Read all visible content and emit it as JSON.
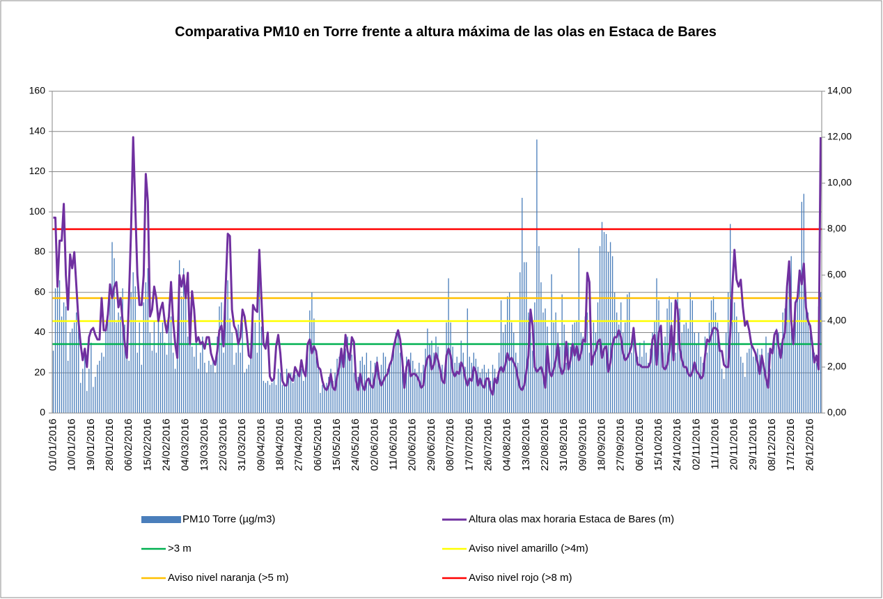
{
  "chart_data": {
    "type": "bar_line",
    "title": "Comparativa PM10 en Torre frente a altura máxima de las olas en Estaca de Bares",
    "categories": [
      "01/01/2016",
      null,
      null,
      null,
      null,
      null,
      null,
      null,
      null,
      "10/01/2016",
      null,
      null,
      null,
      null,
      null,
      null,
      null,
      null,
      "19/01/2016",
      null,
      null,
      null,
      null,
      null,
      null,
      null,
      null,
      "28/01/2016",
      null,
      null,
      null,
      null,
      null,
      null,
      null,
      null,
      "06/02/2016",
      null,
      null,
      null,
      null,
      null,
      null,
      null,
      null,
      "15/02/2016",
      null,
      null,
      null,
      null,
      null,
      null,
      null,
      null,
      "24/02/2016",
      null,
      null,
      null,
      null,
      null,
      null,
      null,
      null,
      "04/03/2016",
      null,
      null,
      null,
      null,
      null,
      null,
      null,
      null,
      "13/03/2016",
      null,
      null,
      null,
      null,
      null,
      null,
      null,
      null,
      "22/03/2016",
      null,
      null,
      null,
      null,
      null,
      null,
      null,
      null,
      "31/03/2016",
      null,
      null,
      null,
      null,
      null,
      null,
      null,
      null,
      "09/04/2016",
      null,
      null,
      null,
      null,
      null,
      null,
      null,
      null,
      "18/04/2016",
      null,
      null,
      null,
      null,
      null,
      null,
      null,
      null,
      "27/04/2016",
      null,
      null,
      null,
      null,
      null,
      null,
      null,
      null,
      "06/05/2016",
      null,
      null,
      null,
      null,
      null,
      null,
      null,
      null,
      "15/05/2016",
      null,
      null,
      null,
      null,
      null,
      null,
      null,
      null,
      "24/05/2016",
      null,
      null,
      null,
      null,
      null,
      null,
      null,
      null,
      "02/06/2016",
      null,
      null,
      null,
      null,
      null,
      null,
      null,
      null,
      "11/06/2016",
      null,
      null,
      null,
      null,
      null,
      null,
      null,
      null,
      "20/06/2016",
      null,
      null,
      null,
      null,
      null,
      null,
      null,
      null,
      "29/06/2016",
      null,
      null,
      null,
      null,
      null,
      null,
      null,
      null,
      "08/07/2016",
      null,
      null,
      null,
      null,
      null,
      null,
      null,
      null,
      "17/07/2016",
      null,
      null,
      null,
      null,
      null,
      null,
      null,
      null,
      "26/07/2016",
      null,
      null,
      null,
      null,
      null,
      null,
      null,
      null,
      "04/08/2016",
      null,
      null,
      null,
      null,
      null,
      null,
      null,
      null,
      "13/08/2016",
      null,
      null,
      null,
      null,
      null,
      null,
      null,
      null,
      "22/08/2016",
      null,
      null,
      null,
      null,
      null,
      null,
      null,
      null,
      "31/08/2016",
      null,
      null,
      null,
      null,
      null,
      null,
      null,
      null,
      "09/09/2016",
      null,
      null,
      null,
      null,
      null,
      null,
      null,
      null,
      "18/09/2016",
      null,
      null,
      null,
      null,
      null,
      null,
      null,
      null,
      "27/09/2016",
      null,
      null,
      null,
      null,
      null,
      null,
      null,
      null,
      "06/10/2016",
      null,
      null,
      null,
      null,
      null,
      null,
      null,
      null,
      "15/10/2016",
      null,
      null,
      null,
      null,
      null,
      null,
      null,
      null,
      "24/10/2016",
      null,
      null,
      null,
      null,
      null,
      null,
      null,
      null,
      "02/11/2016",
      null,
      null,
      null,
      null,
      null,
      null,
      null,
      null,
      "11/11/2016",
      null,
      null,
      null,
      null,
      null,
      null,
      null,
      null,
      "20/11/2016",
      null,
      null,
      null,
      null,
      null,
      null,
      null,
      null,
      "29/11/2016",
      null,
      null,
      null,
      null,
      null,
      null,
      null,
      null,
      "08/12/2016",
      null,
      null,
      null,
      null,
      null,
      null,
      null,
      null,
      "17/12/2016",
      null,
      null,
      null,
      null,
      null,
      null,
      null,
      null,
      "26/12/2016",
      null,
      null,
      null,
      null,
      null
    ],
    "series": [
      {
        "name": "PM10 Torre (µg/m3)",
        "type": "bar",
        "color": "#4a7ebb",
        "axis": "y",
        "values": [
          31,
          62,
          67,
          66,
          48,
          55,
          53,
          26,
          40,
          42,
          45,
          50,
          47,
          15,
          22,
          30,
          11,
          22,
          35,
          13,
          18,
          24,
          26,
          30,
          28,
          44,
          50,
          57,
          85,
          77,
          45,
          50,
          48,
          62,
          44,
          30,
          26,
          60,
          70,
          63,
          30,
          45,
          24,
          55,
          65,
          72,
          40,
          31,
          46,
          30,
          48,
          40,
          45,
          35,
          29,
          54,
          48,
          30,
          22,
          40,
          76,
          58,
          72,
          62,
          38,
          45,
          33,
          28,
          35,
          22,
          30,
          38,
          25,
          20,
          26,
          24,
          26,
          20,
          38,
          53,
          55,
          30,
          70,
          66,
          47,
          40,
          24,
          30,
          44,
          30,
          45,
          20,
          22,
          24,
          30,
          50,
          45,
          30,
          70,
          43,
          16,
          15,
          16,
          14,
          15,
          18,
          14,
          22,
          20,
          14,
          15,
          22,
          17,
          20,
          15,
          19,
          20,
          18,
          22,
          16,
          19,
          30,
          51,
          60,
          47,
          28,
          22,
          10,
          14,
          12,
          15,
          18,
          22,
          16,
          20,
          27,
          28,
          30,
          25,
          32,
          38,
          30,
          29,
          20,
          20,
          18,
          26,
          28,
          24,
          30,
          17,
          26,
          20,
          25,
          28,
          20,
          24,
          30,
          28,
          22,
          25,
          28,
          33,
          40,
          40,
          30,
          22,
          20,
          28,
          25,
          30,
          26,
          22,
          20,
          25,
          20,
          24,
          32,
          42,
          34,
          36,
          30,
          38,
          33,
          20,
          24,
          20,
          45,
          67,
          45,
          33,
          25,
          28,
          25,
          36,
          30,
          23,
          52,
          28,
          25,
          30,
          27,
          23,
          20,
          22,
          24,
          20,
          22,
          16,
          24,
          22,
          18,
          30,
          56,
          40,
          44,
          58,
          60,
          45,
          40,
          30,
          25,
          70,
          107,
          75,
          75,
          50,
          40,
          31,
          55,
          136,
          83,
          65,
          50,
          52,
          43,
          25,
          69,
          45,
          50,
          40,
          33,
          59,
          44,
          25,
          35,
          33,
          44,
          45,
          46,
          82,
          40,
          38,
          48,
          50,
          30,
          36,
          45,
          40,
          55,
          83,
          95,
          90,
          89,
          80,
          85,
          78,
          60,
          50,
          44,
          55,
          40,
          45,
          59,
          60,
          30,
          40,
          30,
          28,
          35,
          28,
          36,
          30,
          25,
          32,
          40,
          46,
          67,
          56,
          40,
          30,
          38,
          52,
          58,
          55,
          38,
          30,
          60,
          52,
          40,
          44,
          45,
          42,
          60,
          56,
          40,
          34,
          40,
          28,
          25,
          38,
          30,
          45,
          56,
          58,
          50,
          45,
          35,
          22,
          17,
          40,
          60,
          94,
          60,
          55,
          48,
          40,
          28,
          25,
          18,
          30,
          32,
          35,
          28,
          29,
          32,
          29,
          32,
          25,
          38,
          30,
          22,
          32,
          40,
          42,
          40,
          35,
          50,
          52,
          60,
          75,
          78,
          35,
          55,
          60,
          70,
          105,
          109,
          60,
          50,
          40,
          36,
          30,
          25,
          53,
          60
        ]
      },
      {
        "name": "Altura olas max horaria Estaca de Bares (m)",
        "type": "line",
        "color": "#7030a0",
        "axis": "y2",
        "values": [
          8.5,
          8.5,
          5.5,
          7.5,
          7.5,
          9.1,
          6,
          4.5,
          6.9,
          6.3,
          7,
          5.5,
          4,
          3,
          2.3,
          2.8,
          2,
          3.3,
          3.6,
          3.7,
          3.4,
          3.2,
          3.2,
          5,
          3.6,
          3.6,
          4.3,
          5.6,
          5,
          5.5,
          5.7,
          4.6,
          5,
          4,
          3,
          2.4,
          5,
          8,
          12,
          9,
          6,
          4.7,
          4.7,
          6,
          10.4,
          9.2,
          4.2,
          4.5,
          5.5,
          5,
          4,
          4.5,
          4.8,
          4,
          3.5,
          4.2,
          5.7,
          4,
          3,
          2.4,
          6,
          5.5,
          6,
          5,
          6.1,
          3,
          5.3,
          4.5,
          3.1,
          3.3,
          3,
          3.1,
          2.8,
          3.3,
          3.3,
          2.6,
          2.3,
          2.1,
          2.7,
          3.6,
          3.8,
          2.9,
          5.5,
          7.8,
          7.7,
          4.5,
          3.8,
          3.6,
          3,
          3.3,
          4.5,
          4.2,
          3.5,
          2.5,
          2.4,
          4.7,
          4.5,
          4.4,
          7.1,
          5,
          3,
          2.8,
          3.5,
          1.6,
          1.4,
          1.5,
          2.9,
          3.4,
          2.6,
          1.4,
          1.2,
          1.2,
          1.7,
          1.5,
          1.4,
          2,
          1.8,
          1.6,
          2.3,
          1.8,
          1.6,
          3,
          3.2,
          2.6,
          2.9,
          2.7,
          2,
          1.9,
          1.4,
          1.1,
          1,
          1.2,
          1.7,
          1.1,
          1,
          1.6,
          2,
          2.8,
          2,
          3.4,
          2.7,
          2.3,
          3.3,
          3.1,
          1.4,
          1,
          1.7,
          1.2,
          1,
          1.4,
          1.5,
          1.2,
          1.1,
          1.6,
          2.2,
          1.5,
          1.2,
          1.4,
          1.6,
          1.7,
          2.1,
          2.3,
          2.9,
          3.3,
          3.6,
          3.2,
          2.3,
          1.1,
          2,
          2.3,
          1.6,
          1.7,
          1.7,
          1.6,
          1.4,
          1.1,
          1.2,
          2,
          2.4,
          2.5,
          1.9,
          2.1,
          2.6,
          2.3,
          1.9,
          1.4,
          1.3,
          2.5,
          2.8,
          2.5,
          1.8,
          1.6,
          1.8,
          1.7,
          2.2,
          2,
          1.5,
          1.2,
          1.5,
          1.4,
          2,
          1.8,
          1.2,
          1.5,
          1.2,
          1.1,
          1.5,
          1.5,
          1,
          0.8,
          1.5,
          1.3,
          1.8,
          2,
          1.8,
          2.1,
          2.6,
          2.3,
          2.4,
          2.2,
          2,
          1.5,
          1.1,
          1,
          1.2,
          1.8,
          2.5,
          4.5,
          3.8,
          2,
          1.8,
          1.9,
          2,
          1.7,
          1.1,
          2.9,
          1.8,
          1.6,
          1.9,
          2.3,
          3,
          2,
          1.7,
          1.9,
          3.1,
          1.9,
          2.3,
          3,
          2.5,
          2.9,
          2.3,
          2.6,
          3.2,
          3.1,
          6.1,
          5.7,
          2.1,
          2.5,
          2.7,
          3.1,
          3.2,
          2.4,
          2.8,
          2.9,
          1.8,
          2.2,
          3,
          3.3,
          3.3,
          3.6,
          3.3,
          2.6,
          2.3,
          2.4,
          2.6,
          2.9,
          3.7,
          2.7,
          2.1,
          2.1,
          2,
          2,
          2,
          2,
          2.2,
          3.2,
          3.4,
          2.1,
          3.5,
          3.8,
          2,
          1.9,
          2.1,
          2.7,
          3.8,
          2.3,
          4.9,
          4.5,
          2.8,
          2.3,
          2,
          2,
          1.7,
          1.6,
          1.8,
          2.2,
          1.8,
          1.7,
          1.5,
          1.6,
          2.5,
          3.2,
          3.1,
          3.4,
          3.7,
          3.7,
          3.6,
          2.7,
          2.7,
          2.1,
          2,
          2,
          3.5,
          5.5,
          7.1,
          5.8,
          5.5,
          5.8,
          4.6,
          3.8,
          4,
          3.6,
          3,
          2.8,
          2.6,
          2.2,
          1.7,
          2.5,
          2,
          1.5,
          1.1,
          2.8,
          2.6,
          3.4,
          3.6,
          2.9,
          2.4,
          3.2,
          3.5,
          5.5,
          6.6,
          4,
          3,
          4.8,
          5,
          6.2,
          5.6,
          6.5,
          4.6,
          4,
          3.8,
          3,
          2.2,
          2.5,
          1.9,
          12
        ]
      }
    ],
    "reference_lines": [
      {
        "name": ">3 m",
        "color": "#00b050",
        "axis": "y2",
        "value": 3
      },
      {
        "name": "Aviso nivel amarillo (>4m)",
        "color": "#ffff00",
        "axis": "y2",
        "value": 4
      },
      {
        "name": "Aviso nivel naranja (>5 m)",
        "color": "#ffc000",
        "axis": "y2",
        "value": 5
      },
      {
        "name": "Aviso nivel rojo (>8 m)",
        "color": "#ff0000",
        "axis": "y2",
        "value": 8
      }
    ],
    "ylim": [
      0,
      160
    ],
    "yticks": [
      0,
      20,
      40,
      60,
      80,
      100,
      120,
      140,
      160
    ],
    "y2lim": [
      0,
      14
    ],
    "y2ticks": [
      {
        "value": 0,
        "label": "0,00"
      },
      {
        "value": 2,
        "label": "2,00"
      },
      {
        "value": 4,
        "label": "4,00"
      },
      {
        "value": 6,
        "label": "6,00"
      },
      {
        "value": 8,
        "label": "8,00"
      },
      {
        "value": 10,
        "label": "10,00"
      },
      {
        "value": 12,
        "label": "12,00"
      },
      {
        "value": 14,
        "label": "14,00"
      }
    ],
    "grid": true,
    "legend": "bottom"
  }
}
